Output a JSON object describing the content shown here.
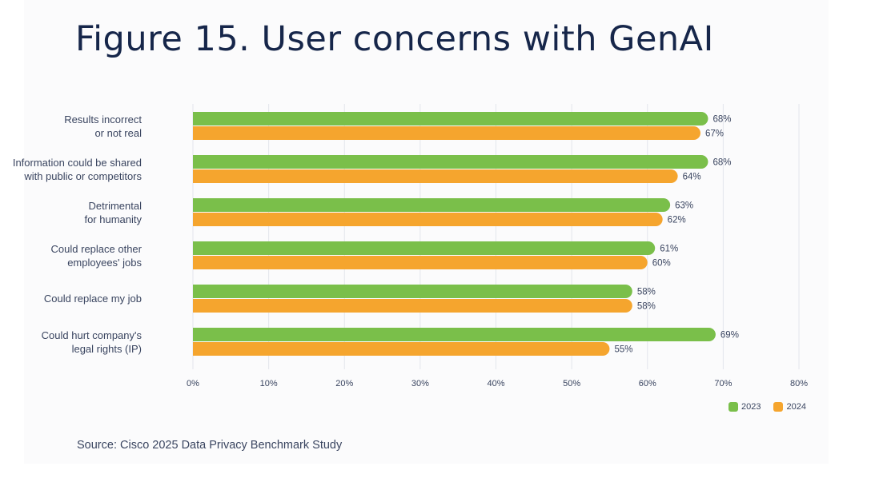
{
  "title": "Figure 15. User concerns with GenAI",
  "source": "Source: Cisco 2025 Data Privacy Benchmark Study",
  "colors": {
    "2023": "#7abf4a",
    "2024": "#f5a52e",
    "grid": "#e3e6ec",
    "text": "#3a4560"
  },
  "chart_data": {
    "type": "bar",
    "orientation": "horizontal",
    "categories": [
      "Results incorrect\nor not real",
      "Information could be shared\nwith public or competitors",
      "Detrimental\nfor humanity",
      "Could replace other\nemployees' jobs",
      "Could replace my job",
      "Could hurt company's\nlegal rights (IP)"
    ],
    "series": [
      {
        "name": "2023",
        "values": [
          68,
          68,
          63,
          61,
          58,
          69
        ]
      },
      {
        "name": "2024",
        "values": [
          67,
          64,
          62,
          60,
          58,
          55
        ]
      }
    ],
    "xlim": [
      0,
      80
    ],
    "xticks": [
      "0%",
      "10%",
      "20%",
      "30%",
      "40%",
      "50%",
      "60%",
      "70%",
      "80%"
    ],
    "value_suffix": "%",
    "grid": true,
    "legend": "bottom-right"
  }
}
